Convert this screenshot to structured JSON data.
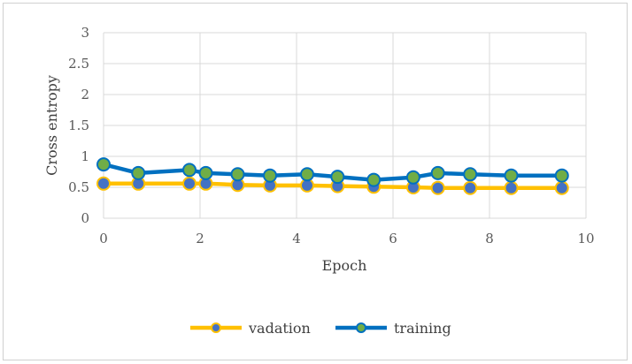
{
  "chart_data": {
    "type": "line",
    "xlabel": "Epoch",
    "ylabel": "Cross entropy",
    "xlim": [
      0,
      10
    ],
    "ylim": [
      0,
      3
    ],
    "xticks": [
      0,
      2,
      4,
      6,
      8,
      10
    ],
    "yticks": [
      0,
      0.5,
      1,
      1.5,
      2,
      2.5,
      3
    ],
    "grid": true,
    "legend_position": "bottom",
    "series": [
      {
        "name": "vadation",
        "line_color": "#FFC000",
        "marker_color": "#4472C4",
        "x": [
          0,
          0.72,
          1.78,
          2.12,
          2.78,
          3.45,
          4.22,
          4.85,
          5.6,
          6.42,
          6.93,
          7.6,
          8.45,
          9.5
        ],
        "y": [
          0.56,
          0.56,
          0.56,
          0.56,
          0.54,
          0.53,
          0.53,
          0.52,
          0.51,
          0.5,
          0.49,
          0.49,
          0.49,
          0.49
        ]
      },
      {
        "name": "training",
        "line_color": "#0070C0",
        "marker_color": "#70AD47",
        "x": [
          0,
          0.72,
          1.78,
          2.12,
          2.78,
          3.45,
          4.22,
          4.85,
          5.6,
          6.42,
          6.93,
          7.6,
          8.45,
          9.5
        ],
        "y": [
          0.87,
          0.73,
          0.78,
          0.73,
          0.71,
          0.69,
          0.71,
          0.67,
          0.62,
          0.66,
          0.73,
          0.71,
          0.69,
          0.69
        ]
      }
    ]
  }
}
